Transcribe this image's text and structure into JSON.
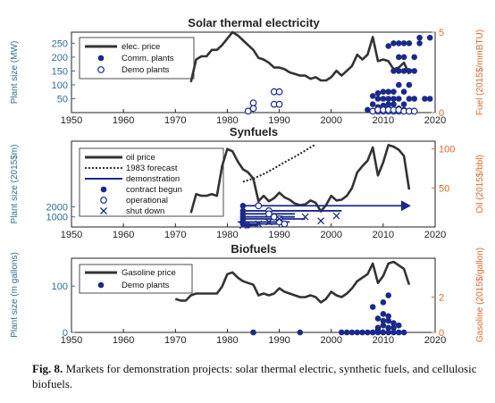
{
  "caption": {
    "label": "Fig. 8.",
    "text": "Markets for demonstration projects: solar thermal electric, synthetic fuels, and cellulosic biofuels."
  },
  "colors": {
    "navy": "#1a2a8a",
    "line": "#333333",
    "left_axis": "#2e6f8e",
    "right_axis": "#d9692b"
  },
  "chart_data": [
    {
      "type": "line",
      "title": "Solar thermal electricity",
      "ylabel": "Plant size (MW)",
      "y2label": "Fuel (2015$/mmBTU)",
      "xlim": [
        1950,
        2020
      ],
      "ylim": [
        0,
        290
      ],
      "y2lim": [
        0,
        5
      ],
      "x_ticks": [
        1950,
        1960,
        1970,
        1980,
        1990,
        2000,
        2010,
        2020
      ],
      "y_ticks": [
        50,
        100,
        150,
        200,
        250
      ],
      "y2_ticks": [
        0,
        5
      ],
      "legend": [
        "elec. price",
        "Comm. plants",
        "Demo plants"
      ],
      "series": [
        {
          "name": "elec. price",
          "axis": "right",
          "x": [
            1973,
            1974,
            1975,
            1976,
            1977,
            1978,
            1979,
            1980,
            1981,
            1982,
            1983,
            1984,
            1985,
            1986,
            1987,
            1988,
            1989,
            1990,
            1991,
            1992,
            1993,
            1994,
            1995,
            1996,
            1997,
            1998,
            1999,
            2000,
            2001,
            2002,
            2003,
            2004,
            2005,
            2006,
            2007,
            2008,
            2009,
            2010,
            2011,
            2012,
            2013,
            2014,
            2015
          ],
          "y": [
            1.9,
            3.3,
            3.5,
            3.5,
            3.9,
            3.9,
            4.2,
            4.6,
            5.0,
            4.8,
            4.5,
            4.2,
            3.9,
            3.4,
            3.3,
            3.1,
            2.8,
            2.8,
            2.7,
            2.5,
            2.4,
            2.3,
            2.3,
            2.1,
            2.2,
            2.0,
            2.0,
            2.2,
            2.6,
            2.3,
            2.6,
            2.9,
            3.6,
            3.3,
            3.6,
            4.7,
            3.2,
            3.3,
            3.2,
            2.7,
            2.8,
            3.1,
            2.4
          ]
        },
        {
          "name": "Comm. plants",
          "axis": "left",
          "x": [
            2007,
            2008,
            2008,
            2009,
            2009,
            2009,
            2010,
            2010,
            2010,
            2010,
            2011,
            2011,
            2011,
            2011,
            2011,
            2012,
            2012,
            2012,
            2012,
            2012,
            2012,
            2013,
            2013,
            2013,
            2013,
            2013,
            2013,
            2014,
            2014,
            2014,
            2014,
            2014,
            2014,
            2015,
            2015,
            2015,
            2015,
            2016,
            2016,
            2016,
            2017,
            2017,
            2018,
            2019,
            2019
          ],
          "y": [
            10,
            30,
            60,
            20,
            50,
            70,
            10,
            25,
            50,
            75,
            15,
            30,
            50,
            75,
            240,
            10,
            30,
            50,
            75,
            150,
            250,
            15,
            50,
            100,
            150,
            250,
            200,
            10,
            30,
            75,
            150,
            200,
            250,
            50,
            100,
            150,
            250,
            50,
            150,
            200,
            270,
            250,
            50,
            270,
            50
          ]
        },
        {
          "name": "Demo plants",
          "axis": "left",
          "x": [
            1984,
            1985,
            1985,
            1989,
            1989,
            1990,
            1990,
            2008,
            2009,
            2009,
            2010,
            2010,
            2011,
            2011,
            2012,
            2012,
            2013,
            2013,
            2014,
            2015,
            2016
          ],
          "y": [
            5,
            15,
            35,
            30,
            75,
            30,
            75,
            5,
            5,
            10,
            5,
            10,
            5,
            10,
            5,
            10,
            5,
            10,
            5,
            5,
            5
          ]
        }
      ]
    },
    {
      "type": "line",
      "title": "Synfuels",
      "ylabel": "Plant size (2015$m)",
      "y2label": "Oil (2015$/bbl)",
      "xlim": [
        1950,
        2020
      ],
      "ylim": [
        0,
        8500
      ],
      "y2lim": [
        0,
        110
      ],
      "x_ticks": [
        1950,
        1960,
        1970,
        1980,
        1990,
        2000,
        2010,
        2020
      ],
      "y_ticks": [
        1000,
        2000
      ],
      "y2_ticks": [
        50,
        100
      ],
      "legend": [
        "oil price",
        "1983 forecast",
        "demonstration",
        "contract begun",
        "operational",
        "shut down"
      ],
      "series": [
        {
          "name": "oil price",
          "axis": "right",
          "x": [
            1973,
            1974,
            1975,
            1976,
            1977,
            1978,
            1979,
            1980,
            1981,
            1982,
            1983,
            1984,
            1985,
            1986,
            1987,
            1988,
            1989,
            1990,
            1991,
            1992,
            1993,
            1994,
            1995,
            1996,
            1997,
            1998,
            1999,
            2000,
            2001,
            2002,
            2003,
            2004,
            2005,
            2006,
            2007,
            2008,
            2009,
            2010,
            2011,
            2012,
            2013,
            2014,
            2015
          ],
          "y": [
            18,
            42,
            40,
            40,
            42,
            40,
            78,
            100,
            97,
            84,
            74,
            70,
            62,
            33,
            40,
            33,
            37,
            44,
            38,
            35,
            30,
            28,
            29,
            34,
            31,
            20,
            28,
            40,
            34,
            35,
            40,
            50,
            70,
            78,
            85,
            102,
            66,
            83,
            105,
            103,
            99,
            91,
            48
          ]
        },
        {
          "name": "1983 forecast",
          "axis": "right",
          "x": [
            1983,
            1985,
            1987,
            1989,
            1991,
            1993,
            1995,
            1997
          ],
          "y": [
            58,
            62,
            68,
            75,
            83,
            90,
            98,
            106
          ]
        },
        {
          "name": "demonstration",
          "axis": "left",
          "segments": [
            [
              1983,
              2015,
              2100
            ],
            [
              1983,
              2002,
              1600
            ],
            [
              1983,
              1993,
              1300
            ],
            [
              1983,
              1993,
              1000
            ],
            [
              1983,
              1995,
              800
            ],
            [
              1982,
              1992,
              500
            ],
            [
              1983,
              1990,
              300
            ],
            [
              1983,
              1986,
              150
            ]
          ]
        },
        {
          "name": "contract begun",
          "axis": "left",
          "x": [
            1983,
            1983,
            1983,
            1983,
            1983,
            1983,
            1983,
            1984
          ],
          "y": [
            2100,
            1600,
            1300,
            1000,
            800,
            500,
            300,
            150
          ]
        },
        {
          "name": "operational",
          "axis": "left",
          "x": [
            1986,
            1988,
            1988,
            1989,
            1990,
            1990,
            1991
          ],
          "y": [
            2100,
            1600,
            1300,
            1000,
            800,
            500,
            300
          ]
        },
        {
          "name": "shut down",
          "axis": "left",
          "x": [
            1983,
            1986,
            1988,
            1990,
            1995,
            1998,
            2001
          ],
          "y": [
            150,
            300,
            500,
            800,
            1000,
            600,
            1100
          ]
        }
      ]
    },
    {
      "type": "line",
      "title": "Biofuels",
      "ylabel": "Plant size (m gallons)",
      "y2label": "Gasoline (2015$/gallon)",
      "xlim": [
        1950,
        2020
      ],
      "ylim": [
        0,
        160
      ],
      "y2lim": [
        0,
        4.2
      ],
      "x_ticks": [
        1950,
        1960,
        1970,
        1980,
        1990,
        2000,
        2010,
        2020
      ],
      "y_ticks": [
        0,
        100
      ],
      "y2_ticks": [
        0,
        2
      ],
      "legend": [
        "Gasoline price",
        "Demo plants"
      ],
      "series": [
        {
          "name": "Gasoline price",
          "axis": "right",
          "x": [
            1970,
            1971,
            1972,
            1973,
            1974,
            1975,
            1976,
            1977,
            1978,
            1979,
            1980,
            1981,
            1982,
            1983,
            1984,
            1985,
            1986,
            1987,
            1988,
            1989,
            1990,
            1991,
            1992,
            1993,
            1994,
            1995,
            1996,
            1997,
            1998,
            1999,
            2000,
            2001,
            2002,
            2003,
            2004,
            2005,
            2006,
            2007,
            2008,
            2009,
            2010,
            2011,
            2012,
            2013,
            2014,
            2015
          ],
          "y": [
            1.9,
            1.8,
            1.8,
            2.1,
            2.2,
            2.2,
            2.2,
            2.2,
            2.2,
            2.6,
            3.3,
            3.4,
            3.1,
            2.9,
            2.8,
            2.7,
            2.1,
            2.2,
            2.1,
            2.2,
            2.5,
            2.3,
            2.2,
            2.1,
            2.0,
            2.0,
            2.1,
            2.0,
            1.7,
            1.9,
            2.3,
            2.1,
            2.0,
            2.2,
            2.5,
            2.9,
            3.1,
            3.3,
            3.9,
            2.8,
            3.2,
            3.9,
            4.0,
            3.8,
            3.6,
            2.7
          ]
        },
        {
          "name": "Demo plants",
          "axis": "left",
          "x": [
            1985,
            1994,
            2002,
            2003,
            2004,
            2005,
            2006,
            2007,
            2008,
            2008,
            2009,
            2009,
            2009,
            2009,
            2010,
            2010,
            2010,
            2010,
            2010,
            2011,
            2011,
            2011,
            2011,
            2011,
            2012,
            2012,
            2012,
            2013,
            2013,
            2014
          ],
          "y": [
            0,
            0,
            0,
            0,
            0,
            0,
            0,
            0,
            0,
            55,
            0,
            5,
            10,
            30,
            0,
            15,
            25,
            40,
            65,
            0,
            10,
            25,
            35,
            80,
            0,
            10,
            20,
            0,
            15,
            0
          ]
        }
      ]
    }
  ]
}
